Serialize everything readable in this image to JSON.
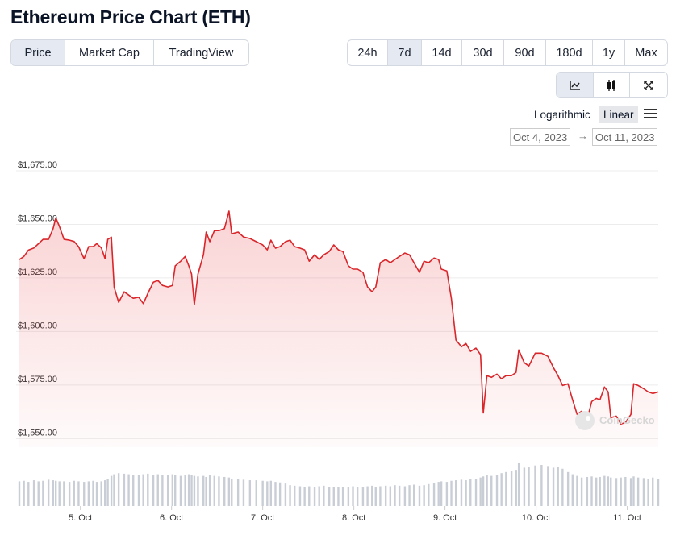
{
  "header": {
    "title": "Ethereum Price Chart (ETH)"
  },
  "tabs": [
    "Price",
    "Market Cap",
    "TradingView"
  ],
  "active_tab": "Price",
  "ranges": [
    "24h",
    "7d",
    "14d",
    "30d",
    "90d",
    "180d",
    "1y",
    "Max"
  ],
  "active_range": "7d",
  "scales": [
    "Logarithmic",
    "Linear"
  ],
  "active_scale": "Linear",
  "date_from": "Oct 4, 2023",
  "date_to": "Oct 11, 2023",
  "watermark": "CoinGecko",
  "chart_data": {
    "type": "line",
    "color": "#d9262b",
    "x": [
      4.33,
      4.38,
      4.43,
      4.49,
      4.54,
      4.59,
      4.65,
      4.7,
      4.73,
      4.77,
      4.82,
      4.88,
      4.93,
      4.98,
      5.04,
      5.09,
      5.14,
      5.18,
      5.23,
      5.27,
      5.3,
      5.34,
      5.37,
      5.42,
      5.48,
      5.53,
      5.58,
      5.64,
      5.69,
      5.74,
      5.8,
      5.85,
      5.9,
      5.96,
      6.01,
      6.04,
      6.1,
      6.15,
      6.19,
      6.22,
      6.25,
      6.29,
      6.35,
      6.38,
      6.42,
      6.47,
      6.52,
      6.58,
      6.63,
      6.66,
      6.73,
      6.79,
      6.86,
      6.93,
      7.0,
      7.05,
      7.09,
      7.14,
      7.19,
      7.25,
      7.3,
      7.35,
      7.41,
      7.46,
      7.51,
      7.57,
      7.62,
      7.67,
      7.73,
      7.78,
      7.83,
      7.88,
      7.94,
      7.99,
      8.04,
      8.1,
      8.15,
      8.2,
      8.24,
      8.29,
      8.35,
      8.4,
      8.45,
      8.5,
      8.56,
      8.61,
      8.66,
      8.72,
      8.77,
      8.82,
      8.88,
      8.93,
      8.96,
      9.02,
      9.07,
      9.12,
      9.18,
      9.23,
      9.28,
      9.34,
      9.39,
      9.42,
      9.46,
      9.51,
      9.57,
      9.62,
      9.67,
      9.73,
      9.78,
      9.81,
      9.87,
      9.92,
      9.99,
      10.06,
      10.13,
      10.19,
      10.24,
      10.29,
      10.35,
      10.4,
      10.45,
      10.5,
      10.56,
      10.61,
      10.66,
      10.7,
      10.75,
      10.79,
      10.82,
      10.88,
      10.93,
      10.98,
      11.04,
      11.07,
      11.12,
      11.18,
      11.23,
      11.28,
      11.34
    ],
    "values": [
      1633.6,
      1635,
      1638,
      1639,
      1641,
      1643,
      1643,
      1648,
      1653,
      1649,
      1643,
      1642.6,
      1642,
      1639.6,
      1634,
      1639.6,
      1639.6,
      1641,
      1639,
      1634,
      1643,
      1644,
      1620.7,
      1613.6,
      1618.5,
      1617,
      1615.5,
      1616,
      1613,
      1617.8,
      1623,
      1623.8,
      1621.5,
      1620.8,
      1621.5,
      1630.6,
      1632.8,
      1635,
      1630.6,
      1626.8,
      1612.5,
      1626.8,
      1635.8,
      1646.4,
      1641.9,
      1647.1,
      1647.1,
      1648,
      1656.2,
      1645.6,
      1646.4,
      1644.1,
      1643.4,
      1641.9,
      1640.4,
      1638.1,
      1642.6,
      1638.9,
      1639.6,
      1641.9,
      1642.6,
      1639.6,
      1638.9,
      1638.1,
      1632.8,
      1635.8,
      1633.6,
      1635.8,
      1637.3,
      1640.4,
      1638.1,
      1637.3,
      1630.6,
      1629.1,
      1629.1,
      1627.6,
      1620.8,
      1618.5,
      1620.8,
      1632.1,
      1633.6,
      1632.1,
      1633.6,
      1635,
      1636.6,
      1635.8,
      1632.1,
      1627.6,
      1632.8,
      1632.1,
      1634.3,
      1633.6,
      1629.1,
      1628.3,
      1615.5,
      1596,
      1592.9,
      1594.4,
      1590.7,
      1592.2,
      1589.2,
      1562,
      1579.4,
      1578.6,
      1580.1,
      1577.9,
      1579.4,
      1579.4,
      1580.9,
      1591.4,
      1585.4,
      1583.9,
      1589.9,
      1589.9,
      1588.4,
      1583.1,
      1579.4,
      1574.8,
      1575.6,
      1568.1,
      1561.3,
      1562.8,
      1559,
      1567.3,
      1568.8,
      1568.1,
      1574.1,
      1571.8,
      1559.8,
      1560.5,
      1556.8,
      1557.5,
      1561.3,
      1575.6,
      1574.8,
      1573.3,
      1571.8,
      1571.1,
      1571.8
    ],
    "xlim": [
      4.33,
      11.34
    ],
    "xticks": [
      {
        "value": 5,
        "label": "5. Oct"
      },
      {
        "value": 6,
        "label": "6. Oct"
      },
      {
        "value": 7,
        "label": "7. Oct"
      },
      {
        "value": 8,
        "label": "8. Oct"
      },
      {
        "value": 9,
        "label": "9. Oct"
      },
      {
        "value": 10,
        "label": "10. Oct"
      },
      {
        "value": 11,
        "label": "11. Oct"
      }
    ],
    "ylim": [
      1546,
      1678
    ],
    "yticks": [
      {
        "value": 1550,
        "label": "$1,550.00"
      },
      {
        "value": 1575,
        "label": "$1,575.00"
      },
      {
        "value": 1600,
        "label": "$1,600.00"
      },
      {
        "value": 1625,
        "label": "$1,625.00"
      },
      {
        "value": 1650,
        "label": "$1,650.00"
      },
      {
        "value": 1675,
        "label": "$1,675.00"
      }
    ],
    "grid": true,
    "volume": {
      "color": "#c9ced6",
      "ylim": [
        0,
        100
      ],
      "values": [
        45,
        46,
        44,
        47,
        45,
        46,
        48,
        47,
        46,
        45,
        45,
        44,
        46,
        45,
        44,
        45,
        46,
        44,
        45,
        47,
        50,
        55,
        58,
        60,
        59,
        58,
        57,
        56,
        58,
        59,
        57,
        58,
        56,
        57,
        58,
        56,
        55,
        57,
        58,
        56,
        55,
        54,
        55,
        53,
        56,
        55,
        54,
        53,
        52,
        50,
        49,
        48,
        47,
        47,
        46,
        45,
        46,
        44,
        43,
        41,
        38,
        37,
        36,
        35,
        36,
        35,
        36,
        37,
        35,
        34,
        35,
        34,
        35,
        36,
        35,
        34,
        36,
        37,
        35,
        36,
        37,
        36,
        38,
        37,
        36,
        38,
        39,
        37,
        38,
        40,
        42,
        44,
        45,
        44,
        46,
        47,
        48,
        47,
        49,
        50,
        52,
        54,
        56,
        55,
        57,
        60,
        62,
        64,
        66,
        78,
        70,
        72,
        74,
        75,
        73,
        70,
        71,
        68,
        62,
        58,
        55,
        52,
        53,
        54,
        52,
        53,
        55,
        54,
        52,
        51,
        52,
        53,
        51,
        54,
        52,
        51,
        50,
        52,
        50
      ]
    }
  }
}
